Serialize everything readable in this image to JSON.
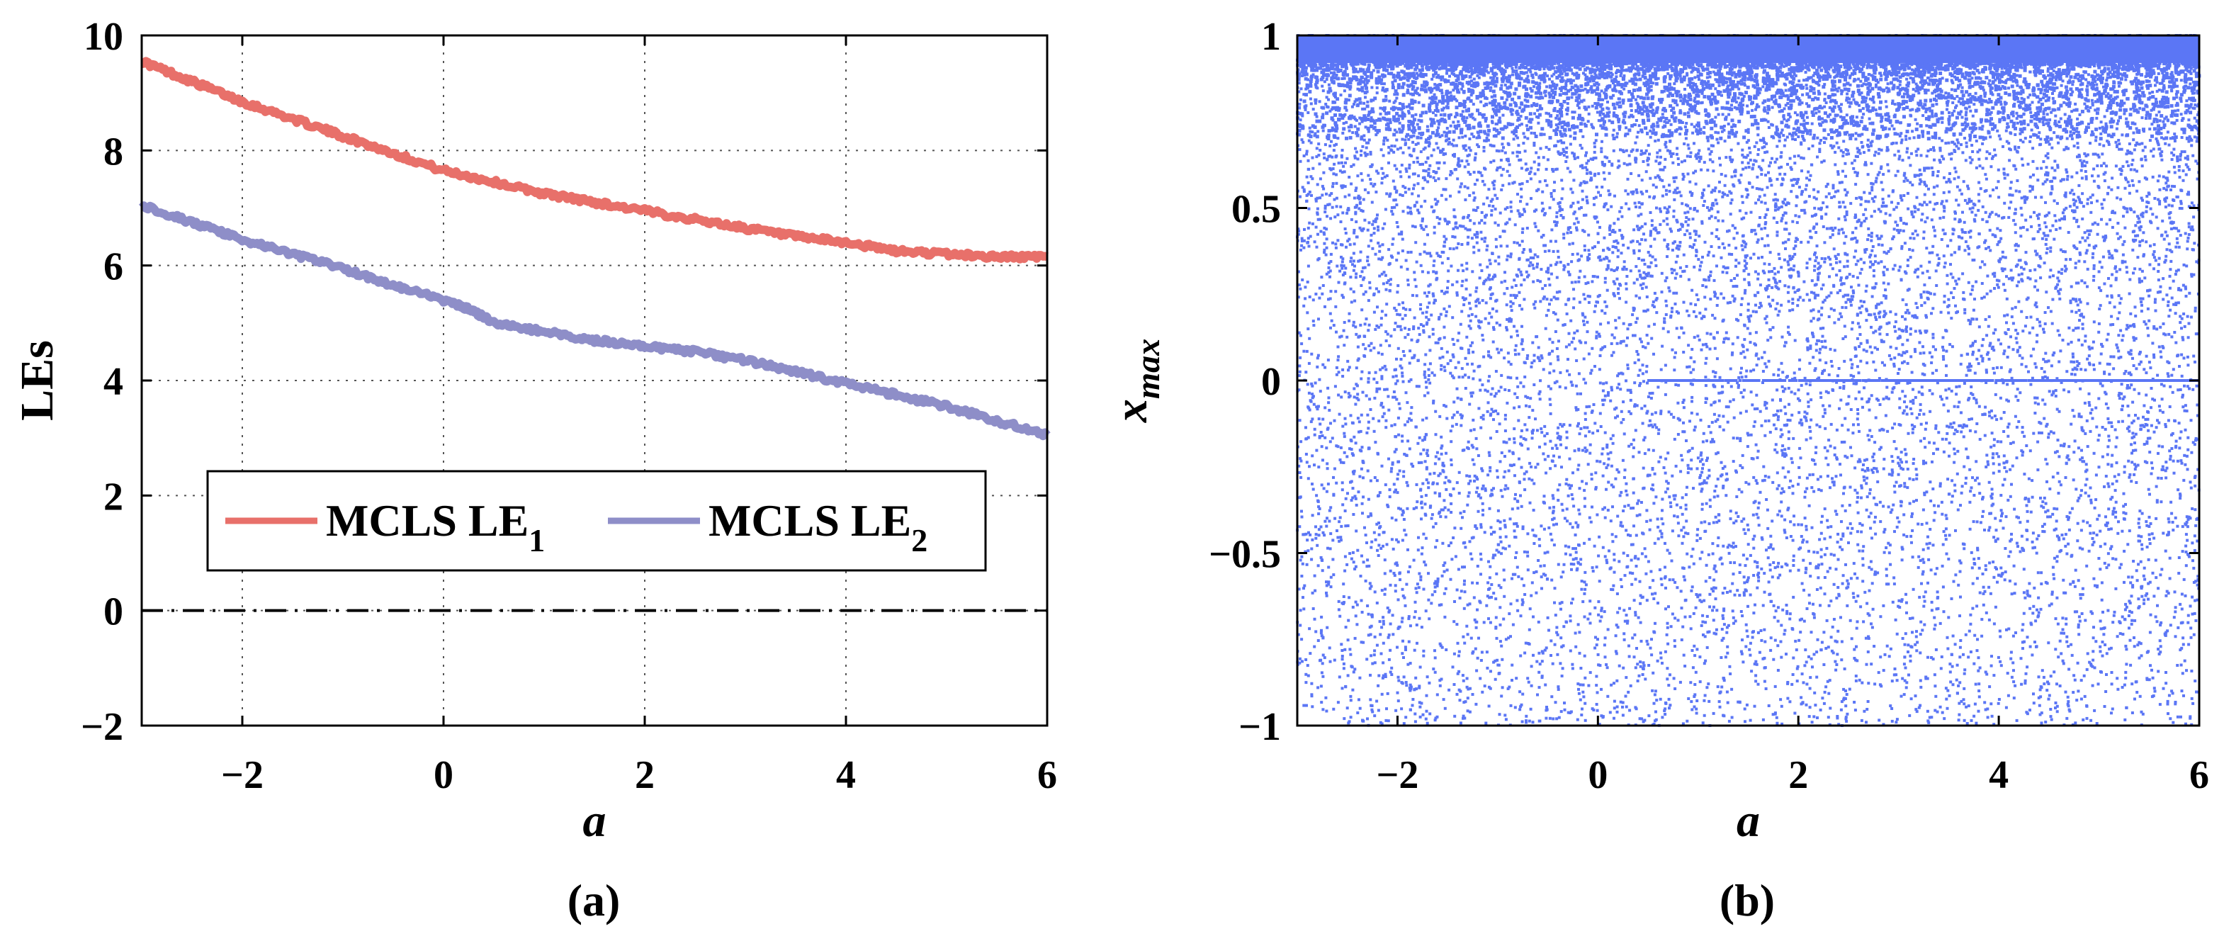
{
  "chart_data": [
    {
      "id": "a",
      "type": "line",
      "caption": "(a)",
      "xlabel": "a",
      "ylabel": "LEs",
      "xlim": [
        -3,
        6
      ],
      "ylim": [
        -2,
        10
      ],
      "xticks": [
        -2,
        0,
        2,
        4,
        6
      ],
      "xtick_labels": [
        "−2",
        "0",
        "2",
        "4",
        "6"
      ],
      "yticks": [
        -2,
        0,
        2,
        4,
        6,
        8,
        10
      ],
      "ytick_labels": [
        "−2",
        "0",
        "2",
        "4",
        "6",
        "8",
        "10"
      ],
      "grid": true,
      "zero_line": {
        "y": 0,
        "style": "dash-dot",
        "color": "#000000"
      },
      "legend": {
        "location": "lower-left"
      },
      "series": [
        {
          "name": "MCLS LE",
          "subscript": "1",
          "color": "#e8706a",
          "x": [
            -3,
            -2.5,
            -2,
            -1.5,
            -1,
            -0.5,
            0,
            0.5,
            1,
            1.5,
            2,
            2.5,
            3,
            3.5,
            4,
            4.5,
            5,
            5.5,
            6
          ],
          "y": [
            9.55,
            9.2,
            8.85,
            8.55,
            8.25,
            7.95,
            7.65,
            7.45,
            7.25,
            7.1,
            6.95,
            6.8,
            6.65,
            6.5,
            6.4,
            6.25,
            6.2,
            6.15,
            6.15
          ]
        },
        {
          "name": "MCLS LE",
          "subscript": "2",
          "color": "#8e8ec8",
          "x": [
            -3,
            -2.5,
            -2,
            -1.5,
            -1,
            -0.5,
            0,
            0.3,
            0.5,
            1,
            1.5,
            2,
            2.5,
            3,
            3.5,
            4,
            4.5,
            5,
            5.5,
            6
          ],
          "y": [
            7.05,
            6.75,
            6.45,
            6.2,
            5.95,
            5.65,
            5.4,
            5.2,
            5.0,
            4.85,
            4.7,
            4.6,
            4.5,
            4.35,
            4.15,
            3.95,
            3.75,
            3.55,
            3.3,
            3.05
          ]
        }
      ]
    },
    {
      "id": "b",
      "type": "scatter",
      "caption": "(b)",
      "xlabel": "a",
      "ylabel": "x",
      "ylabel_subscript": "max",
      "xlim": [
        -3,
        6
      ],
      "ylim": [
        -1,
        1
      ],
      "xticks": [
        -2,
        0,
        2,
        4,
        6
      ],
      "xtick_labels": [
        "−2",
        "0",
        "2",
        "4",
        "6"
      ],
      "yticks": [
        -1,
        -0.5,
        0,
        0.5,
        1
      ],
      "ytick_labels": [
        "−1",
        "−0.5",
        "0",
        "0.5",
        "1"
      ],
      "grid": false,
      "color": "#5b76f5",
      "note": "dense band of points near x_max = 1 thinning toward -1; faint horizontal line of points at x_max = 0 for a > 0.5"
    }
  ]
}
